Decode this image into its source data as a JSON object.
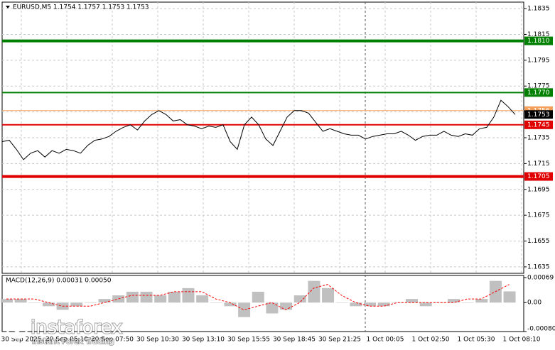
{
  "chart_data": [
    {
      "type": "line",
      "title": "EURUSD,M5  1.1754 1.1757 1.1753 1.1753",
      "color": "#000000",
      "values": [
        1.1732,
        1.1733,
        1.1726,
        1.1718,
        1.1723,
        1.1725,
        1.172,
        1.1725,
        1.1723,
        1.1726,
        1.1725,
        1.1723,
        1.1729,
        1.1733,
        1.1734,
        1.1736,
        1.174,
        1.1743,
        1.1745,
        1.1741,
        1.1748,
        1.1753,
        1.1756,
        1.1753,
        1.1748,
        1.1749,
        1.1745,
        1.1744,
        1.1742,
        1.1744,
        1.1743,
        1.1745,
        1.1732,
        1.1726,
        1.1745,
        1.1751,
        1.1745,
        1.1734,
        1.1729,
        1.174,
        1.1751,
        1.1756,
        1.1756,
        1.1754,
        1.1747,
        1.174,
        1.1742,
        1.174,
        1.1738,
        1.1737,
        1.1737,
        1.1734,
        1.1736,
        1.1737,
        1.1738,
        1.1738,
        1.174,
        1.1737,
        1.1733,
        1.1736,
        1.1737,
        1.1737,
        1.174,
        1.1737,
        1.1736,
        1.1738,
        1.1737,
        1.1742,
        1.1743,
        1.1751,
        1.1764,
        1.1759,
        1.1753
      ],
      "ylim": [
        1.163,
        1.184
      ],
      "yticks": [
        1.1835,
        1.1815,
        1.1795,
        1.1775,
        1.1755,
        1.1735,
        1.1715,
        1.1695,
        1.1675,
        1.1655,
        1.1635
      ],
      "grid": true,
      "levels": [
        {
          "value": 1.181,
          "label": "1.1810",
          "color": "#008000",
          "width": 4
        },
        {
          "value": 1.177,
          "label": "1.1770",
          "color": "#008000",
          "width": 2
        },
        {
          "value": 1.1756,
          "label": "1.1756",
          "color": "#f5a05a",
          "width": 1
        },
        {
          "value": 1.1745,
          "label": "1.1745",
          "color": "#e00000",
          "width": 2
        },
        {
          "value": 1.1705,
          "label": "1.1705",
          "color": "#e00000",
          "width": 4
        }
      ],
      "last_price": 1.1753,
      "xtick_labels": [
        "30 Sep 2025",
        "30 Sep 05:10",
        "30 Sep 07:50",
        "30 Sep 10:30",
        "30 Sep 13:10",
        "30 Sep 15:55",
        "30 Sep 18:45",
        "30 Sep 21:25",
        "1 Oct 00:05",
        "1 Oct 02:50",
        "1 Oct 05:30",
        "1 Oct 08:10"
      ]
    },
    {
      "type": "macd",
      "title": "MACD(12,26,9)  0.00031  0.00050",
      "color": "#c0c0c0",
      "signal_color": "#ff0000",
      "values": [
        0.0001,
        0.0001,
        0,
        -0.0001,
        -0.0002,
        -0.0001,
        0,
        0.0001,
        0.0002,
        0.0003,
        0.0003,
        0.0002,
        0.0003,
        0.0004,
        0.0002,
        0,
        -0.0001,
        -0.0004,
        0.0003,
        -0.0003,
        -0.0002,
        0.0002,
        0.0006,
        0.0004,
        0,
        -0.0001,
        -0.0001,
        -0.0001,
        0,
        0.0001,
        -0.0001,
        0,
        0.0001,
        0,
        0.0001,
        0.0006,
        0.00031
      ],
      "signal": [
        0.0001,
        0.0001,
        0.0001,
        0,
        -0.0001,
        -0.0001,
        -0.0001,
        0,
        0.0001,
        0.0002,
        0.0002,
        0.0002,
        0.0003,
        0.0003,
        0.0003,
        0.0001,
        0,
        -0.0002,
        -0.0001,
        0,
        -0.0002,
        0,
        0.0004,
        0.0005,
        0.0002,
        0,
        -0.0001,
        -0.0001,
        0,
        0,
        0,
        0,
        0,
        0.0001,
        0.0001,
        0.0003,
        0.0005
      ],
      "ylim": [
        -0.0008,
        0.00075
      ],
      "yticks": [
        0.00069,
        {
          "value": 0,
          "label": "0.00"
        },
        {
          "value": -0.0008,
          "label": "-0.00080"
        }
      ]
    }
  ],
  "watermark": {
    "brand": "instaforex",
    "tagline": "Instant Forex Trading"
  }
}
